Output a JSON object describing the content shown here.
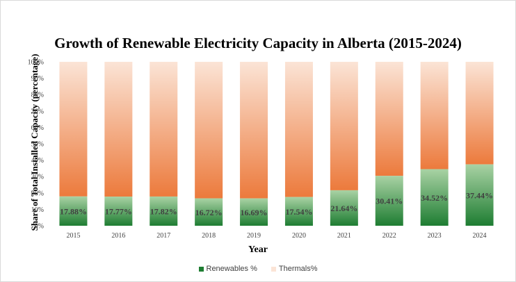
{
  "chart_data": {
    "type": "bar",
    "stacked": true,
    "percent_stacked": true,
    "title": "Growth of Renewable Electricity Capacity in Alberta (2015-2024)",
    "xlabel": "Year",
    "ylabel": "Share of Total Installed Capacity (percentage)",
    "categories": [
      "2015",
      "2016",
      "2017",
      "2018",
      "2019",
      "2020",
      "2021",
      "2022",
      "2023",
      "2024"
    ],
    "series": [
      {
        "name": "Renewables %",
        "values": [
          17.88,
          17.77,
          17.82,
          16.72,
          16.69,
          17.54,
          21.64,
          30.41,
          34.52,
          37.44
        ],
        "labels": [
          "17.88%",
          "17.77%",
          "17.82%",
          "16.72%",
          "16.69%",
          "17.54%",
          "21.64%",
          "30.41%",
          "34.52%",
          "37.44%"
        ],
        "color_dark": "#1e7d32",
        "color_light": "#a9d2a4"
      },
      {
        "name": "Thermals%",
        "values": [
          82.12,
          82.23,
          82.18,
          83.28,
          83.31,
          82.46,
          78.36,
          69.59,
          65.48,
          62.56
        ],
        "color_dark": "#ec7a3c",
        "color_light": "#fbe4d6"
      }
    ],
    "ylim": [
      0,
      100
    ],
    "yticks": [
      "0%",
      "10%",
      "20%",
      "30%",
      "40%",
      "50%",
      "60%",
      "70%",
      "80%",
      "90%",
      "100%"
    ],
    "grid": false,
    "legend": "bottom"
  }
}
